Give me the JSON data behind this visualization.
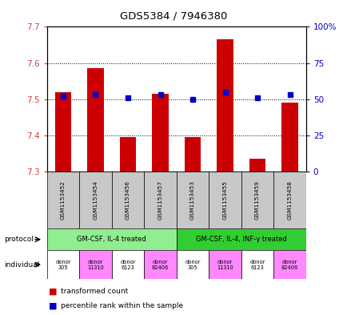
{
  "title": "GDS5384 / 7946380",
  "samples": [
    "GSM1153452",
    "GSM1153454",
    "GSM1153456",
    "GSM1153457",
    "GSM1153453",
    "GSM1153455",
    "GSM1153459",
    "GSM1153458"
  ],
  "red_values": [
    7.52,
    7.585,
    7.395,
    7.515,
    7.395,
    7.665,
    7.335,
    7.49
  ],
  "blue_values": [
    52,
    53,
    51,
    53,
    50,
    55,
    51,
    53
  ],
  "ylim_left": [
    7.3,
    7.7
  ],
  "ylim_right": [
    0,
    100
  ],
  "yticks_left": [
    7.3,
    7.4,
    7.5,
    7.6,
    7.7
  ],
  "yticks_right": [
    0,
    25,
    50,
    75,
    100
  ],
  "ytick_labels_right": [
    "0",
    "25",
    "50",
    "75",
    "100%"
  ],
  "protocol_groups": [
    {
      "label": "GM-CSF, IL-4 treated",
      "start": 0,
      "end": 4,
      "color": "#90EE90"
    },
    {
      "label": "GM-CSF, IL-4, INF-γ treated",
      "start": 4,
      "end": 8,
      "color": "#32CD32"
    }
  ],
  "ind_colors": [
    "#ffffff",
    "#FF88FF",
    "#ffffff",
    "#FF88FF",
    "#ffffff",
    "#FF88FF",
    "#ffffff",
    "#FF88FF"
  ],
  "ind_labels": [
    "donor\n305",
    "donor\n11310",
    "donor\n6123",
    "donor\n82406",
    "donor\n305",
    "donor\n11310",
    "donor\n6123",
    "donor\n82406"
  ],
  "bar_color": "#CC0000",
  "dot_color": "#0000CC",
  "bar_width": 0.5,
  "baseline": 7.3,
  "legend_red": "transformed count",
  "legend_blue": "percentile rank within the sample",
  "left_tick_color": "#CC4444",
  "right_tick_color": "#0000CC",
  "protocol_label": "protocol",
  "individual_label": "individual",
  "sample_box_color": "#C8C8C8"
}
